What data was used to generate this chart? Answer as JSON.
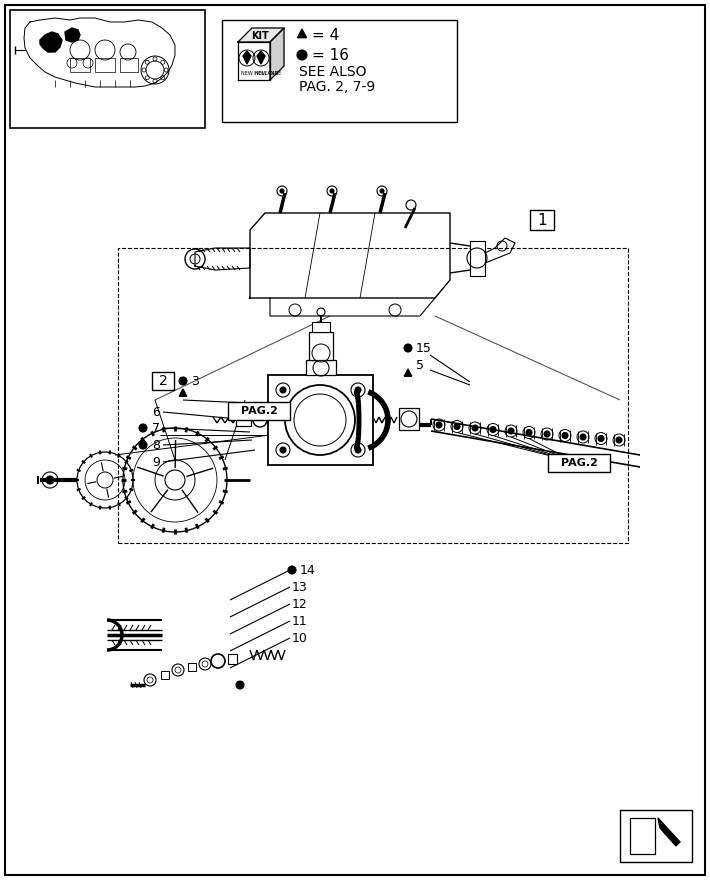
{
  "bg_color": "#ffffff",
  "border_color": "#000000",
  "kit_text_lines": [
    "▲ = 4",
    "● = 16",
    "SEE ALSO",
    "PAG. 2, 7-9"
  ],
  "part1_label": "1",
  "part2_label": "2",
  "pag2_left_label": "PAG.2",
  "pag2_right_label": "PAG.2",
  "label_3": "3",
  "label_5": "5",
  "label_6": "6",
  "label_7": "7",
  "label_8": "8",
  "label_9": "9",
  "label_10": "10",
  "label_11": "11",
  "label_12": "12",
  "label_13": "13",
  "label_14": "14",
  "label_15": "15"
}
